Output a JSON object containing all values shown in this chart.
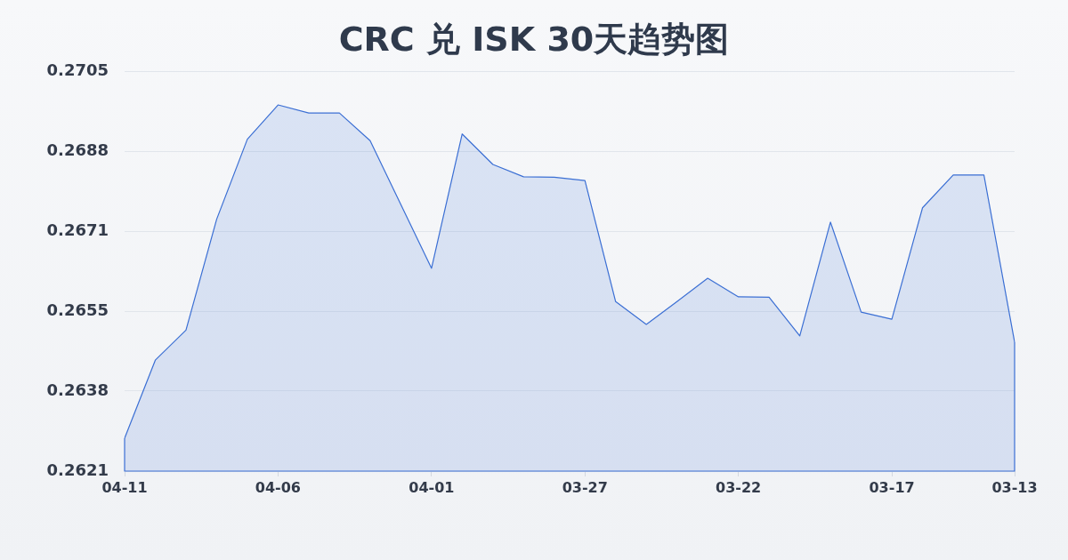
{
  "chart_data": {
    "type": "area",
    "title": "CRC 兑 ISK 30天趋势图",
    "categories": [
      "04-11",
      null,
      null,
      null,
      null,
      "04-06",
      null,
      null,
      null,
      null,
      "04-01",
      null,
      null,
      null,
      null,
      "03-27",
      null,
      null,
      null,
      null,
      "03-22",
      null,
      null,
      null,
      null,
      "03-17",
      null,
      null,
      null,
      "03-13"
    ],
    "series": [
      {
        "color": "#3b6fd4",
        "values": [
          0.26279,
          0.26443,
          0.26506,
          0.26739,
          0.26907,
          0.26979,
          0.26962,
          0.26962,
          0.26904,
          0.2677,
          0.26636,
          0.26918,
          0.26854,
          0.26828,
          0.26827,
          0.2682,
          0.26566,
          0.26518,
          0.26566,
          0.26615,
          0.26576,
          0.26575,
          0.26494,
          0.26733,
          0.26544,
          0.26529,
          0.26763,
          0.26832,
          0.26832,
          0.26481
        ]
      }
    ],
    "ylim": [
      0.2621,
      0.2705
    ],
    "yticks": [
      0.2621,
      {
        "value": 0.26378,
        "label": "0.2638"
      },
      {
        "value": 0.26546,
        "label": "0.2655"
      },
      {
        "value": 0.26714,
        "label": "0.2671"
      },
      {
        "value": 0.26882,
        "label": "0.2688"
      },
      0.2705
    ],
    "grid": "y"
  }
}
